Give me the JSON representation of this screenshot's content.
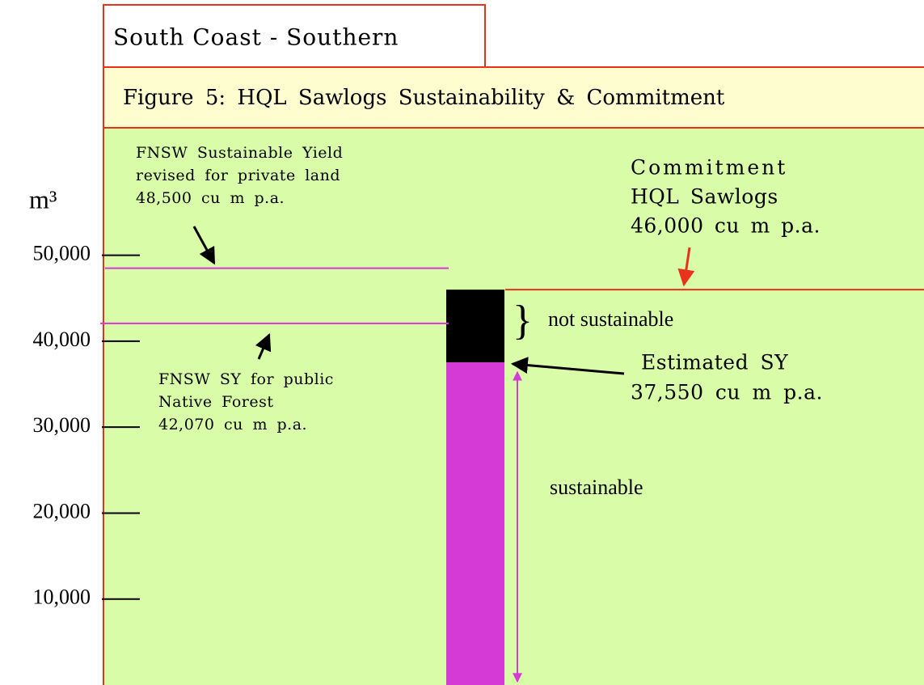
{
  "chart_data": {
    "type": "bar",
    "header": "South Coast - Southern",
    "title": "Figure 5: HQL Sawlogs Sustainability & Commitment",
    "y_label": "m³",
    "categories": [
      null
    ],
    "series": [
      {
        "name": "sustainable",
        "color": "#d63ad6",
        "values": [
          37550
        ]
      },
      {
        "name": "not sustainable",
        "color": "#000000",
        "values": [
          8450
        ]
      }
    ],
    "ylim": [
      0,
      79700
    ],
    "yticks": [
      {
        "value": 10000,
        "label": "10,000"
      },
      {
        "value": 20000,
        "label": "20,000"
      },
      {
        "value": 30000,
        "label": "30,000"
      },
      {
        "value": 40000,
        "label": "40,000"
      },
      {
        "value": 50000,
        "label": "50,000"
      }
    ],
    "reference_lines": [
      {
        "value": 48500,
        "color": "#d63ad6",
        "text": [
          "FNSW Sustainable Yield",
          "revised for private land",
          "48,500 cu m p.a."
        ]
      },
      {
        "value": 42070,
        "color": "#d63ad6",
        "text": [
          "FNSW SY for public",
          "Native Forest",
          "42,070 cu m p.a."
        ]
      },
      {
        "value": 46000,
        "color": "#e8321c",
        "text": [
          "Commitment",
          "HQL Sawlogs",
          "46,000 cu m p.a."
        ]
      }
    ],
    "estimate_label": [
      "Estimated SY",
      "37,550 cu m p.a."
    ]
  }
}
